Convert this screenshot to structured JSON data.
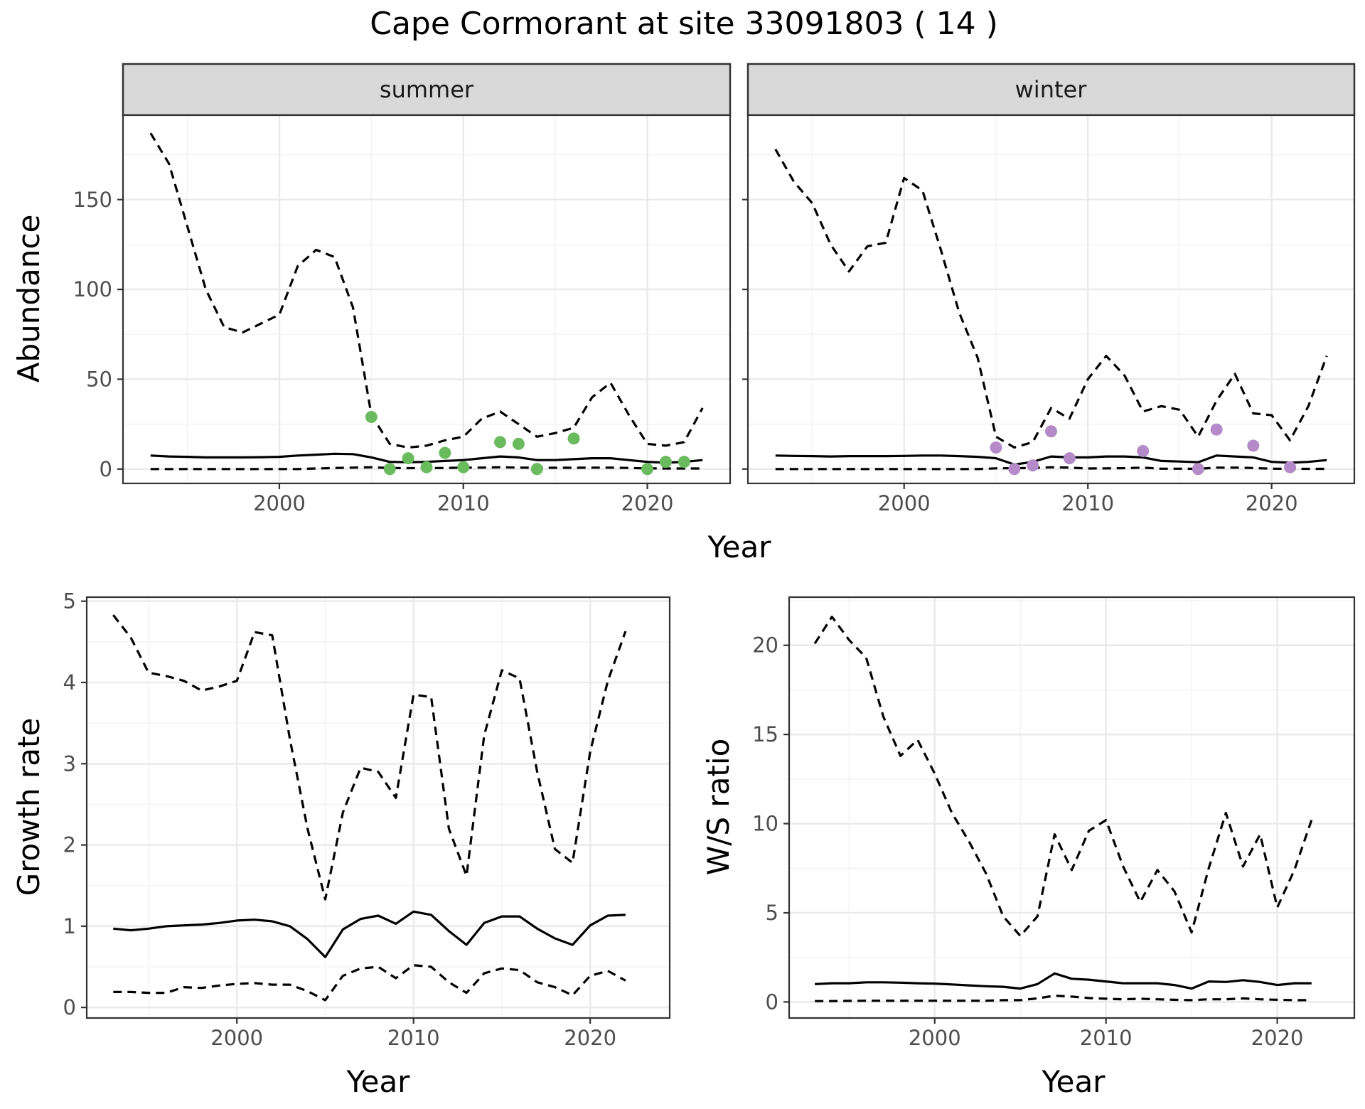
{
  "title": "Cape Cormorant at site 33091803 ( 14 )",
  "colors": {
    "summer_points": "#6ABB5D",
    "winter_points": "#B48AC8",
    "line": "#000000",
    "strip_fill": "#D9D9D9",
    "grid": "#EBEBEB"
  },
  "chart_data": [
    {
      "id": "summer",
      "type": "line",
      "facet_label": "summer",
      "title": "Cape Cormorant at site 33091803 ( 14 )",
      "xlabel": "Year",
      "ylabel": "Abundance",
      "xlim": [
        1991.5,
        2024.5
      ],
      "ylim": [
        -8,
        197
      ],
      "x_ticks": [
        2000,
        2010,
        2020
      ],
      "y_ticks": [
        0,
        50,
        100,
        150
      ],
      "grid": true,
      "years": [
        1993,
        1994,
        1995,
        1996,
        1997,
        1998,
        1999,
        2000,
        2001,
        2002,
        2003,
        2004,
        2005,
        2006,
        2007,
        2008,
        2009,
        2010,
        2011,
        2012,
        2013,
        2014,
        2015,
        2016,
        2017,
        2018,
        2019,
        2020,
        2021,
        2022,
        2023
      ],
      "series": [
        {
          "name": "upper",
          "style": "dashed",
          "values": [
            187,
            170,
            135,
            100,
            79,
            76,
            81,
            86,
            113,
            122,
            118,
            90,
            30,
            14,
            12,
            13,
            16,
            18,
            28,
            32,
            25,
            18,
            20,
            23,
            40,
            48,
            30,
            14,
            13,
            15,
            34
          ]
        },
        {
          "name": "mean",
          "style": "solid",
          "values": [
            7.5,
            7,
            6.8,
            6.5,
            6.5,
            6.5,
            6.6,
            6.8,
            7.5,
            8,
            8.5,
            8.3,
            6.5,
            4,
            3.8,
            4,
            4.5,
            5,
            6,
            7,
            6.5,
            5,
            5,
            5.5,
            6,
            6,
            5,
            4,
            3.5,
            4,
            5
          ]
        },
        {
          "name": "lower",
          "style": "dashed",
          "values": [
            0,
            0,
            0,
            0,
            0,
            0,
            0,
            0,
            0,
            0.3,
            0.6,
            0.8,
            1,
            0.6,
            0.5,
            0.6,
            0.6,
            0.8,
            0.8,
            1,
            0.8,
            0.7,
            0.7,
            0.7,
            0.8,
            0.8,
            0.6,
            0.4,
            0.3,
            0.3,
            0.3
          ]
        }
      ],
      "points": {
        "x": [
          2005,
          2006,
          2007,
          2008,
          2009,
          2010,
          2012,
          2013,
          2014,
          2016,
          2020,
          2021,
          2022
        ],
        "y": [
          29,
          0,
          6,
          1,
          9,
          1,
          15,
          14,
          0,
          17,
          0,
          4,
          4
        ]
      }
    },
    {
      "id": "winter",
      "type": "line",
      "facet_label": "winter",
      "xlabel": "Year",
      "ylabel": "Abundance",
      "xlim": [
        1991.5,
        2024.5
      ],
      "ylim": [
        -8,
        197
      ],
      "x_ticks": [
        2000,
        2010,
        2020
      ],
      "y_ticks": [
        0,
        50,
        100,
        150
      ],
      "grid": true,
      "years": [
        1993,
        1994,
        1995,
        1996,
        1997,
        1998,
        1999,
        2000,
        2001,
        2002,
        2003,
        2004,
        2005,
        2006,
        2007,
        2008,
        2009,
        2010,
        2011,
        2012,
        2013,
        2014,
        2015,
        2016,
        2017,
        2018,
        2019,
        2020,
        2021,
        2022,
        2023
      ],
      "series": [
        {
          "name": "upper",
          "style": "dashed",
          "values": [
            178,
            160,
            148,
            125,
            110,
            124,
            126,
            162,
            155,
            122,
            87,
            62,
            18,
            12,
            15,
            34,
            28,
            50,
            63,
            52,
            32,
            35,
            33,
            18,
            38,
            53,
            31,
            30,
            16,
            35,
            63
          ]
        },
        {
          "name": "mean",
          "style": "solid",
          "values": [
            7.5,
            7.3,
            7.2,
            7,
            7.2,
            7.2,
            7.2,
            7.3,
            7.5,
            7.5,
            7.2,
            6.8,
            6,
            2.5,
            4,
            7,
            6.5,
            6.5,
            7,
            7,
            6.5,
            4.5,
            4.2,
            3.8,
            7.5,
            7,
            6.5,
            4,
            3.5,
            4,
            5
          ]
        },
        {
          "name": "lower",
          "style": "dashed",
          "values": [
            0,
            0,
            0,
            0,
            0,
            0,
            0,
            0,
            0,
            0,
            0,
            0,
            0.4,
            0.5,
            0.6,
            1,
            0.8,
            0.3,
            0.4,
            0.5,
            0.8,
            0.2,
            0.2,
            0.1,
            0.8,
            0.8,
            0.6,
            0.2,
            0.1,
            0.1,
            0.1
          ]
        }
      ],
      "points": {
        "x": [
          2005,
          2006,
          2007,
          2008,
          2009,
          2013,
          2016,
          2017,
          2019,
          2021
        ],
        "y": [
          12,
          0,
          2,
          21,
          6,
          10,
          0,
          22,
          13,
          1
        ]
      }
    },
    {
      "id": "growth",
      "type": "line",
      "xlabel": "Year",
      "ylabel": "Growth rate",
      "xlim": [
        1991.5,
        2024.5
      ],
      "ylim": [
        -0.13,
        5.05
      ],
      "x_ticks": [
        2000,
        2010,
        2020
      ],
      "y_ticks": [
        0,
        1,
        2,
        3,
        4,
        5
      ],
      "grid": true,
      "years": [
        1993,
        1994,
        1995,
        1996,
        1997,
        1998,
        1999,
        2000,
        2001,
        2002,
        2003,
        2004,
        2005,
        2006,
        2007,
        2008,
        2009,
        2010,
        2011,
        2012,
        2013,
        2014,
        2015,
        2016,
        2017,
        2018,
        2019,
        2020,
        2021,
        2022
      ],
      "series": [
        {
          "name": "upper",
          "style": "dashed",
          "values": [
            4.83,
            4.55,
            4.12,
            4.08,
            4.02,
            3.9,
            3.95,
            4.02,
            4.62,
            4.58,
            3.3,
            2.2,
            1.33,
            2.4,
            2.95,
            2.9,
            2.58,
            3.85,
            3.82,
            2.2,
            1.62,
            3.35,
            4.15,
            4.05,
            2.9,
            1.95,
            1.78,
            3.15,
            4.02,
            4.63
          ]
        },
        {
          "name": "mean",
          "style": "solid",
          "values": [
            0.97,
            0.95,
            0.97,
            1,
            1.01,
            1.02,
            1.04,
            1.07,
            1.08,
            1.06,
            1,
            0.84,
            0.62,
            0.96,
            1.09,
            1.13,
            1.03,
            1.18,
            1.14,
            0.94,
            0.77,
            1.04,
            1.12,
            1.12,
            0.97,
            0.85,
            0.77,
            1.01,
            1.13,
            1.14
          ]
        },
        {
          "name": "lower",
          "style": "dashed",
          "values": [
            0.19,
            0.19,
            0.18,
            0.18,
            0.25,
            0.24,
            0.27,
            0.29,
            0.3,
            0.28,
            0.28,
            0.2,
            0.09,
            0.39,
            0.48,
            0.5,
            0.36,
            0.52,
            0.5,
            0.31,
            0.18,
            0.42,
            0.48,
            0.46,
            0.31,
            0.25,
            0.15,
            0.39,
            0.45,
            0.33
          ]
        }
      ]
    },
    {
      "id": "ws_ratio",
      "type": "line",
      "xlabel": "Year",
      "ylabel": "W/S ratio",
      "xlim": [
        1991.5,
        2024.5
      ],
      "ylim": [
        -0.9,
        22.7
      ],
      "x_ticks": [
        2000,
        2010,
        2020
      ],
      "y_ticks": [
        0,
        5,
        10,
        15,
        20
      ],
      "grid": true,
      "years": [
        1993,
        1994,
        1995,
        1996,
        1997,
        1998,
        1999,
        2000,
        2001,
        2002,
        2003,
        2004,
        2005,
        2006,
        2007,
        2008,
        2009,
        2010,
        2011,
        2012,
        2013,
        2014,
        2015,
        2016,
        2017,
        2018,
        2019,
        2020,
        2021,
        2022
      ],
      "series": [
        {
          "name": "upper",
          "style": "dashed",
          "values": [
            20.1,
            21.6,
            20.3,
            19.3,
            16,
            13.8,
            14.7,
            12.8,
            10.6,
            9,
            7.2,
            4.8,
            3.7,
            4.8,
            9.4,
            7.4,
            9.6,
            10.2,
            7.6,
            5.6,
            7.4,
            6.2,
            3.9,
            7.5,
            10.6,
            7.6,
            9.4,
            5.3,
            7.4,
            10.2
          ]
        },
        {
          "name": "mean",
          "style": "solid",
          "values": [
            1,
            1.05,
            1.05,
            1.1,
            1.1,
            1.08,
            1.05,
            1.03,
            0.98,
            0.93,
            0.88,
            0.85,
            0.75,
            1,
            1.6,
            1.3,
            1.25,
            1.15,
            1.05,
            1.05,
            1.05,
            0.95,
            0.75,
            1.15,
            1.12,
            1.22,
            1.12,
            0.95,
            1.05,
            1.05
          ]
        },
        {
          "name": "lower",
          "style": "dashed",
          "values": [
            0.05,
            0.05,
            0.06,
            0.07,
            0.07,
            0.07,
            0.07,
            0.07,
            0.07,
            0.07,
            0.07,
            0.1,
            0.1,
            0.2,
            0.35,
            0.3,
            0.22,
            0.18,
            0.15,
            0.18,
            0.15,
            0.12,
            0.1,
            0.15,
            0.15,
            0.2,
            0.15,
            0.12,
            0.1,
            0.1
          ]
        }
      ]
    }
  ]
}
